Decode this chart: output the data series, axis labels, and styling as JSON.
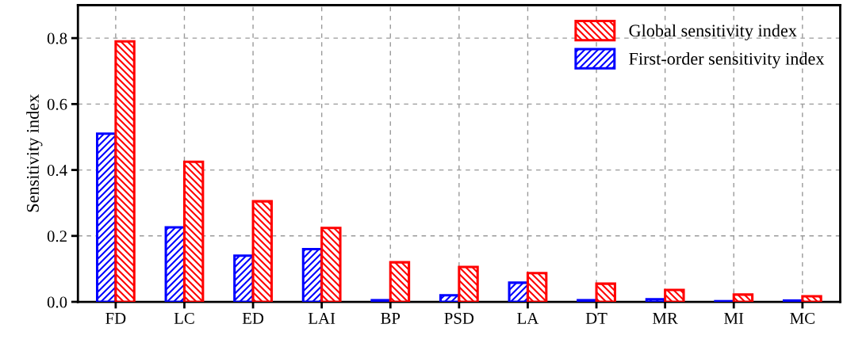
{
  "chart_data": {
    "type": "bar",
    "ylabel": "Sensitivity index",
    "categories": [
      "FD",
      "LC",
      "ED",
      "LAI",
      "BP",
      "PSD",
      "LA",
      "DT",
      "MR",
      "MI",
      "MC"
    ],
    "series": [
      {
        "name": "First-order sensitivity index",
        "color": "#0000ff",
        "values": [
          0.51,
          0.226,
          0.14,
          0.16,
          0.005,
          0.02,
          0.058,
          0.005,
          0.008,
          0.002,
          0.004
        ]
      },
      {
        "name": "Global sensitivity index",
        "color": "#ff0000",
        "values": [
          0.79,
          0.425,
          0.305,
          0.224,
          0.12,
          0.106,
          0.087,
          0.055,
          0.036,
          0.022,
          0.017
        ]
      }
    ],
    "ylim": [
      0,
      0.9
    ],
    "yticks": [
      {
        "value": 0,
        "label": "0.0"
      },
      0.2,
      0.4,
      0.6,
      0.8
    ],
    "grid": true,
    "legend": "top right"
  }
}
